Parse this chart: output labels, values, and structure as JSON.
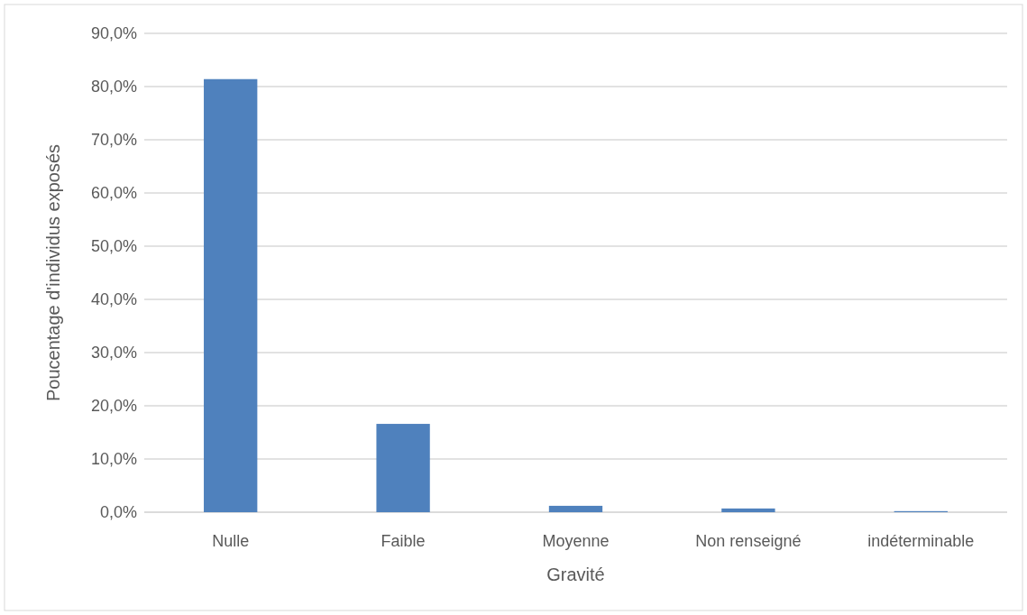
{
  "chart_data": {
    "type": "bar",
    "xlabel": "Gravité",
    "ylabel": "Poucentage d'individus exposés",
    "categories": [
      "Nulle",
      "Faible",
      "Moyenne",
      "Non renseigné",
      "indéterminable"
    ],
    "values": [
      81.4,
      16.6,
      1.2,
      0.7,
      0.2
    ],
    "color": "#4f81bd",
    "ylim": [
      0,
      90
    ],
    "yticks": [
      {
        "value": 0,
        "label": "0,0%"
      },
      {
        "value": 10,
        "label": "10,0%"
      },
      {
        "value": 20,
        "label": "20,0%"
      },
      {
        "value": 30,
        "label": "30,0%"
      },
      {
        "value": 40,
        "label": "40,0%"
      },
      {
        "value": 50,
        "label": "50,0%"
      },
      {
        "value": 60,
        "label": "60,0%"
      },
      {
        "value": 70,
        "label": "70,0%"
      },
      {
        "value": 80,
        "label": "80,0%"
      },
      {
        "value": 90,
        "label": "90,0%"
      }
    ],
    "grid": true
  }
}
